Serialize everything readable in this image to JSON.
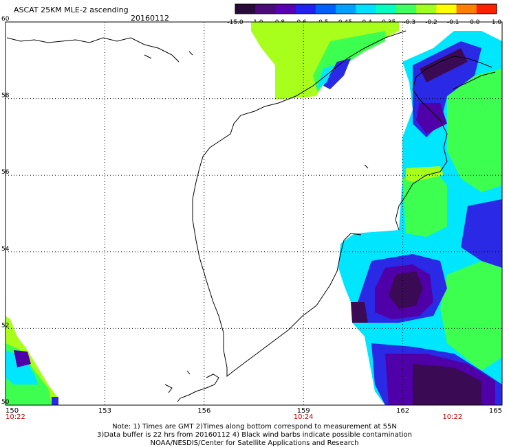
{
  "title": "ASCAT 25KM MLE-2 ascending",
  "date": "20160112",
  "colorbar": {
    "labels": [
      "-15.0",
      "-1.0",
      "-0.8",
      "-0.6",
      "-0.5",
      "-0.45",
      "-0.4",
      "-0.35",
      "-0.3",
      "-0.2",
      "-0.1",
      "0.0",
      "1.0"
    ],
    "colors": [
      "#2a0a3a",
      "#4a0a7a",
      "#5a00b4",
      "#2020f0",
      "#0060ff",
      "#00a0ff",
      "#00e0ff",
      "#00ffc0",
      "#40ff60",
      "#a0ff20",
      "#ffff00",
      "#ff8000",
      "#ff2000"
    ]
  },
  "axes": {
    "lat_labels": [
      "60",
      "58",
      "56",
      "54",
      "52",
      "50"
    ],
    "lon_labels": [
      "150",
      "153",
      "156",
      "159",
      "162",
      "165"
    ],
    "time_labels": [
      "10:22",
      "10:24",
      "10:22"
    ]
  },
  "notes": {
    "line1": "Note: 1) Times are GMT 2)Times along bottom correspond to measurement at 55N",
    "line2": "3)Data buffer is 22 hrs from 20160112 4) Black wind barbs indicate possible contamination",
    "line3": "NOAA/NESDIS/Center for Satellite Applications and Research"
  },
  "palette": {
    "dkpurple": "#3a0a55",
    "purple": "#5000a8",
    "blue": "#2a2ae6",
    "lblue": "#00a0ff",
    "cyan": "#00e6ff",
    "aqua": "#00ffb0",
    "green": "#3cff50",
    "lime": "#a8ff1c"
  }
}
